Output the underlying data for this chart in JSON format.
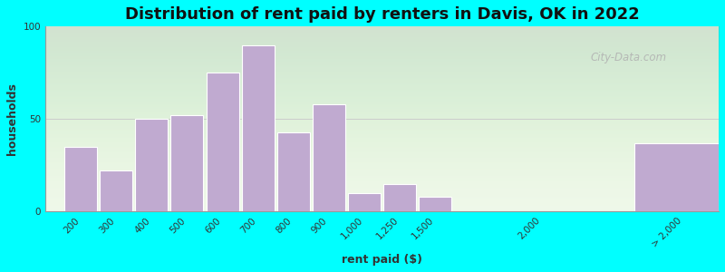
{
  "title": "Distribution of rent paid by renters in Davis, OK in 2022",
  "xlabel": "rent paid ($)",
  "ylabel": "households",
  "bar_color": "#c0aad0",
  "bar_edgecolor": "#ffffff",
  "background_outer": "#00ffff",
  "ylim": [
    0,
    100
  ],
  "yticks": [
    0,
    50,
    100
  ],
  "categories": [
    "200",
    "300",
    "400",
    "500",
    "600",
    "700",
    "800",
    "900",
    "1,000",
    "1,250",
    "1,500",
    "2,000",
    "> 2,000"
  ],
  "x_positions": [
    0,
    1,
    2,
    3,
    4,
    5,
    6,
    7,
    8,
    9,
    10,
    13,
    16
  ],
  "bar_widths": [
    1,
    1,
    1,
    1,
    1,
    1,
    1,
    1,
    1,
    1,
    1,
    1,
    3
  ],
  "values": [
    35,
    22,
    50,
    52,
    75,
    90,
    43,
    58,
    10,
    15,
    8,
    0,
    37
  ],
  "title_fontsize": 13,
  "axis_label_fontsize": 9,
  "tick_fontsize": 7.5,
  "watermark": "City-Data.com"
}
